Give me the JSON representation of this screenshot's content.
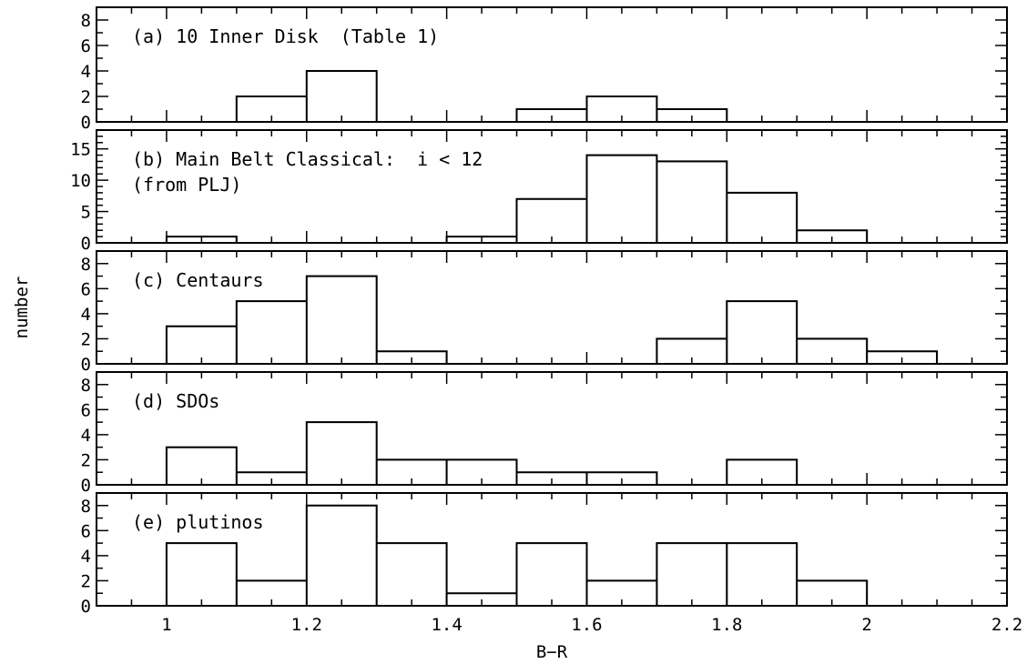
{
  "chart_data": {
    "type": "bar",
    "ylabel": "number",
    "xlabel": "B−R",
    "xlim": [
      0.9,
      2.2
    ],
    "xticks": [
      1,
      1.2,
      1.4,
      1.6,
      1.8,
      2,
      2.2
    ],
    "x_tick_labels": [
      "1",
      "1.2",
      "1.4",
      "1.6",
      "1.8",
      "2",
      "2.2"
    ],
    "bin_width": 0.1,
    "grid": false,
    "panels": [
      {
        "label_lines": [
          "(a) 10 Inner Disk  (Table 1)"
        ],
        "ylim": [
          0,
          9
        ],
        "yticks": [
          0,
          2,
          4,
          6,
          8
        ],
        "y_tick_labels": [
          "0",
          "2",
          "4",
          "6",
          "8"
        ],
        "bins": [
          1.0,
          1.1,
          1.2,
          1.3,
          1.4,
          1.5,
          1.6,
          1.7,
          1.8,
          1.9,
          2.0
        ],
        "counts": [
          0,
          2,
          4,
          0,
          0,
          1,
          2,
          1,
          0,
          0,
          0
        ]
      },
      {
        "label_lines": [
          "(b) Main Belt Classical:  i < 12",
          "(from PLJ)"
        ],
        "ylim": [
          0,
          18
        ],
        "yticks": [
          0,
          5,
          10,
          15
        ],
        "y_tick_labels": [
          "0",
          "5",
          "10",
          "15"
        ],
        "bins": [
          1.0,
          1.1,
          1.2,
          1.3,
          1.4,
          1.5,
          1.6,
          1.7,
          1.8,
          1.9,
          2.0
        ],
        "counts": [
          1,
          0,
          0,
          0,
          1,
          7,
          14,
          13,
          8,
          2,
          0
        ]
      },
      {
        "label_lines": [
          "(c) Centaurs"
        ],
        "ylim": [
          0,
          9
        ],
        "yticks": [
          0,
          2,
          4,
          6,
          8
        ],
        "y_tick_labels": [
          "0",
          "2",
          "4",
          "6",
          "8"
        ],
        "bins": [
          1.0,
          1.1,
          1.2,
          1.3,
          1.4,
          1.5,
          1.6,
          1.7,
          1.8,
          1.9,
          2.0
        ],
        "counts": [
          3,
          5,
          7,
          1,
          0,
          0,
          0,
          2,
          5,
          2,
          1
        ]
      },
      {
        "label_lines": [
          "(d) SDOs"
        ],
        "ylim": [
          0,
          9
        ],
        "yticks": [
          0,
          2,
          4,
          6,
          8
        ],
        "y_tick_labels": [
          "0",
          "2",
          "4",
          "6",
          "8"
        ],
        "bins": [
          1.0,
          1.1,
          1.2,
          1.3,
          1.4,
          1.5,
          1.6,
          1.7,
          1.8
        ],
        "counts": [
          3,
          1,
          5,
          2,
          2,
          1,
          1,
          0,
          2
        ]
      },
      {
        "label_lines": [
          "(e) plutinos"
        ],
        "ylim": [
          0,
          9
        ],
        "yticks": [
          0,
          2,
          4,
          6,
          8
        ],
        "y_tick_labels": [
          "0",
          "2",
          "4",
          "6",
          "8"
        ],
        "bins": [
          1.0,
          1.1,
          1.2,
          1.3,
          1.4,
          1.5,
          1.6,
          1.7,
          1.8,
          1.9
        ],
        "counts": [
          5,
          2,
          8,
          5,
          1,
          5,
          2,
          5,
          5,
          2
        ]
      }
    ]
  }
}
